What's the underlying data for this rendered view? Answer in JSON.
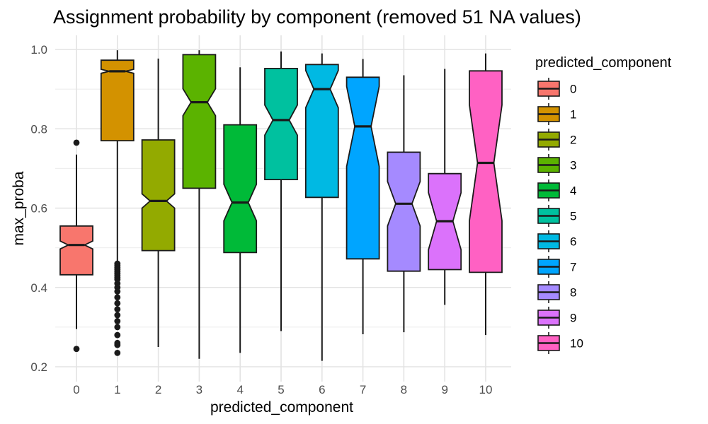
{
  "chart_data": {
    "type": "boxplot",
    "title": "Assignment probability by component (removed 51 NA values)",
    "xlabel": "predicted_component",
    "ylabel": "max_proba",
    "ylim": [
      0.2,
      1.0
    ],
    "yticks": [
      0.2,
      0.4,
      0.6,
      0.8,
      1.0
    ],
    "ytick_labels": [
      "0.2",
      "0.4",
      "0.6",
      "0.8",
      "1.0"
    ],
    "notched": true,
    "grid": true,
    "legend": {
      "title": "predicted_component",
      "placement": "right"
    },
    "categories": [
      "0",
      "1",
      "2",
      "3",
      "4",
      "5",
      "6",
      "7",
      "8",
      "9",
      "10"
    ],
    "colors": [
      "#F8766D",
      "#D39200",
      "#93AA00",
      "#5BB300",
      "#00BA38",
      "#00C19F",
      "#00B9E3",
      "#00A5FF",
      "#A58AFF",
      "#DB72FB",
      "#FF61C3"
    ],
    "boxes": [
      {
        "category": "0",
        "whisker_low": 0.295,
        "q1": 0.432,
        "median": 0.507,
        "q3": 0.555,
        "whisker_high": 0.735,
        "notch_low": 0.497,
        "notch_high": 0.517,
        "outliers": [
          0.765,
          0.245
        ]
      },
      {
        "category": "1",
        "whisker_low": 0.465,
        "q1": 0.77,
        "median": 0.945,
        "q3": 0.973,
        "whisker_high": 0.998,
        "notch_low": 0.94,
        "notch_high": 0.95,
        "outliers": [
          0.46,
          0.455,
          0.45,
          0.445,
          0.44,
          0.435,
          0.43,
          0.425,
          0.42,
          0.41,
          0.4,
          0.39,
          0.375,
          0.36,
          0.345,
          0.33,
          0.315,
          0.3,
          0.28,
          0.26,
          0.255,
          0.235
        ]
      },
      {
        "category": "2",
        "whisker_low": 0.25,
        "q1": 0.493,
        "median": 0.618,
        "q3": 0.772,
        "whisker_high": 0.977,
        "notch_low": 0.6,
        "notch_high": 0.636,
        "outliers": []
      },
      {
        "category": "3",
        "whisker_low": 0.22,
        "q1": 0.65,
        "median": 0.867,
        "q3": 0.987,
        "whisker_high": 0.998,
        "notch_low": 0.833,
        "notch_high": 0.901,
        "outliers": []
      },
      {
        "category": "4",
        "whisker_low": 0.235,
        "q1": 0.488,
        "median": 0.614,
        "q3": 0.81,
        "whisker_high": 0.955,
        "notch_low": 0.568,
        "notch_high": 0.66,
        "outliers": []
      },
      {
        "category": "5",
        "whisker_low": 0.29,
        "q1": 0.672,
        "median": 0.822,
        "q3": 0.952,
        "whisker_high": 0.995,
        "notch_low": 0.784,
        "notch_high": 0.86,
        "outliers": []
      },
      {
        "category": "6",
        "whisker_low": 0.215,
        "q1": 0.627,
        "median": 0.9,
        "q3": 0.962,
        "whisker_high": 0.99,
        "notch_low": 0.853,
        "notch_high": 0.947,
        "outliers": []
      },
      {
        "category": "7",
        "whisker_low": 0.282,
        "q1": 0.472,
        "median": 0.806,
        "q3": 0.93,
        "whisker_high": 0.976,
        "notch_low": 0.705,
        "notch_high": 0.907,
        "outliers": []
      },
      {
        "category": "8",
        "whisker_low": 0.287,
        "q1": 0.441,
        "median": 0.611,
        "q3": 0.741,
        "whisker_high": 0.935,
        "notch_low": 0.555,
        "notch_high": 0.667,
        "outliers": []
      },
      {
        "category": "9",
        "whisker_low": 0.356,
        "q1": 0.445,
        "median": 0.567,
        "q3": 0.687,
        "whisker_high": 0.951,
        "notch_low": 0.495,
        "notch_high": 0.639,
        "outliers": []
      },
      {
        "category": "10",
        "whisker_low": 0.28,
        "q1": 0.438,
        "median": 0.714,
        "q3": 0.946,
        "whisker_high": 0.99,
        "notch_low": 0.568,
        "notch_high": 0.86,
        "outliers": []
      }
    ]
  }
}
